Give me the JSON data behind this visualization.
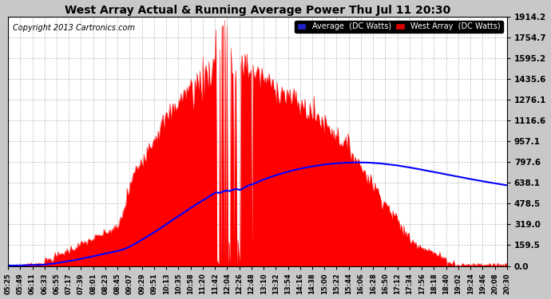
{
  "title": "West Array Actual & Running Average Power Thu Jul 11 20:30",
  "copyright": "Copyright 2013 Cartronics.com",
  "yticks": [
    0.0,
    159.5,
    319.0,
    478.5,
    638.1,
    797.6,
    957.1,
    1116.6,
    1276.1,
    1435.6,
    1595.2,
    1754.7,
    1914.2
  ],
  "ymax": 1914.2,
  "ymin": 0.0,
  "bg_color": "#c8c8c8",
  "plot_bg_color": "#ffffff",
  "grid_color": "#aaaaaa",
  "fill_color": "#ff0000",
  "avg_line_color": "#0000ff",
  "legend_avg_bg": "#0000cc",
  "legend_west_bg": "#cc0000",
  "xtick_labels": [
    "05:25",
    "05:49",
    "06:11",
    "06:33",
    "06:55",
    "07:17",
    "07:39",
    "08:01",
    "08:23",
    "08:45",
    "09:07",
    "09:29",
    "09:51",
    "10:13",
    "10:35",
    "10:58",
    "11:20",
    "11:42",
    "12:04",
    "12:26",
    "12:48",
    "13:10",
    "13:32",
    "13:54",
    "14:16",
    "14:38",
    "15:00",
    "15:22",
    "15:44",
    "16:06",
    "16:28",
    "16:50",
    "17:12",
    "17:34",
    "17:56",
    "18:18",
    "18:40",
    "19:02",
    "19:24",
    "19:46",
    "20:08",
    "20:30"
  ],
  "n_points": 500
}
